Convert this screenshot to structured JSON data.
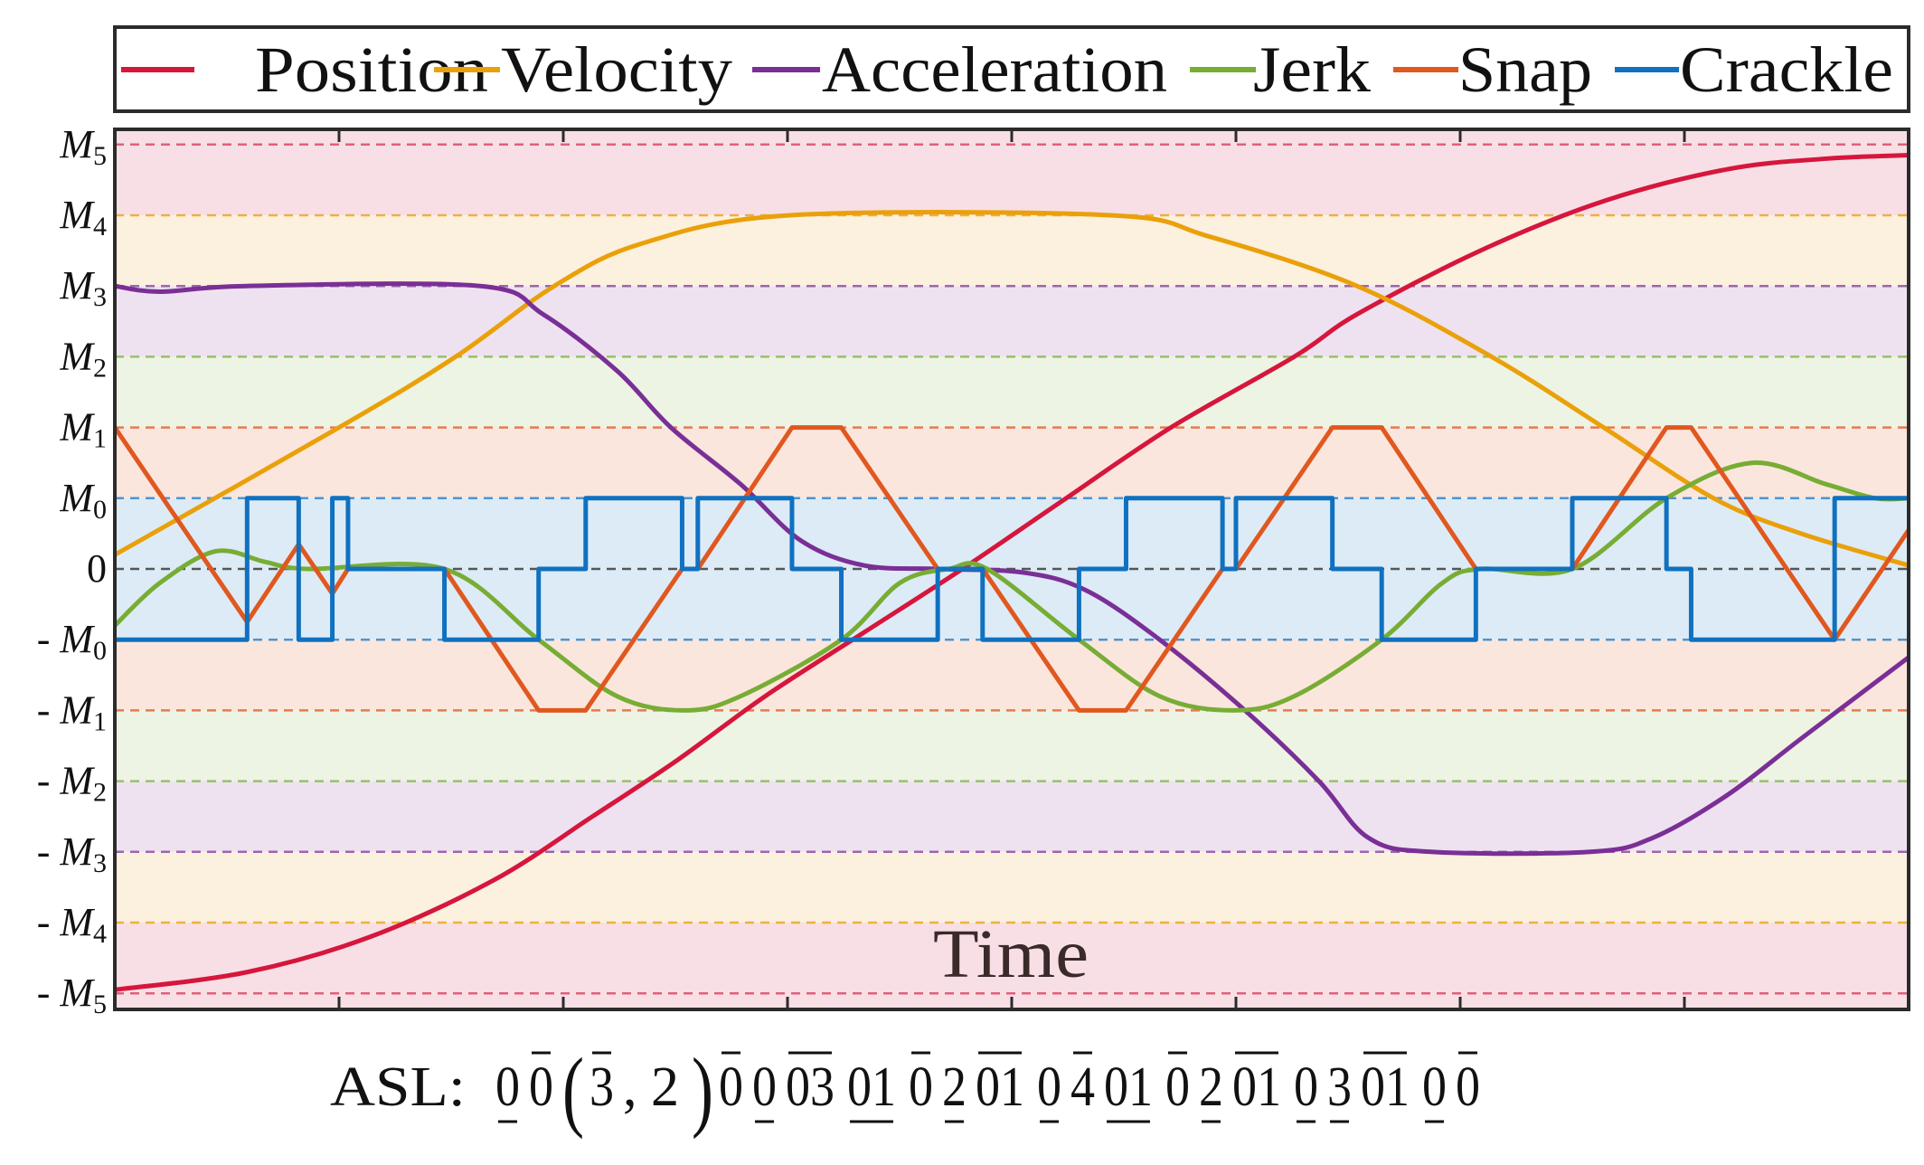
{
  "chart_data": {
    "type": "line",
    "xlabel": "Time",
    "xlim": [
      0,
      8
    ],
    "ylim": [
      -6.2,
      6.2
    ],
    "xticks": [
      1,
      2,
      3,
      4,
      5,
      6,
      7
    ],
    "grid": "dashed horizontal lines at each level",
    "legend_placement": "top (outside, horizontal)",
    "yticks": [
      {
        "value": 6,
        "prefix": "",
        "base": "M",
        "sub": "5"
      },
      {
        "value": 5,
        "prefix": "",
        "base": "M",
        "sub": "4"
      },
      {
        "value": 4,
        "prefix": "",
        "base": "M",
        "sub": "3"
      },
      {
        "value": 3,
        "prefix": "",
        "base": "M",
        "sub": "2"
      },
      {
        "value": 2,
        "prefix": "",
        "base": "M",
        "sub": "1"
      },
      {
        "value": 1,
        "prefix": "",
        "base": "M",
        "sub": "0"
      },
      {
        "value": 0,
        "prefix": "",
        "base": "0",
        "sub": ""
      },
      {
        "value": -1,
        "prefix": "- ",
        "base": "M",
        "sub": "0"
      },
      {
        "value": -2,
        "prefix": "- ",
        "base": "M",
        "sub": "1"
      },
      {
        "value": -3,
        "prefix": "- ",
        "base": "M",
        "sub": "2"
      },
      {
        "value": -4,
        "prefix": "- ",
        "base": "M",
        "sub": "3"
      },
      {
        "value": -5,
        "prefix": "- ",
        "base": "M",
        "sub": "4"
      },
      {
        "value": -6,
        "prefix": "- ",
        "base": "M",
        "sub": "5"
      }
    ],
    "level_colors": {
      "6": {
        "line": "#e0607a",
        "band": "#f8dfe5"
      },
      "5": {
        "line": "#eeb040",
        "band": "#fcf0de"
      },
      "4": {
        "line": "#9b67ad",
        "band": "#eee2f0"
      },
      "3": {
        "line": "#97c167",
        "band": "#eef4e4"
      },
      "2": {
        "line": "#e57a4f",
        "band": "#fbe6dd"
      },
      "1": {
        "line": "#4f95cf",
        "band": "#ddebf6"
      },
      "0": {
        "line": "#555555"
      }
    },
    "series": [
      {
        "name": "Position",
        "color": "#d6163c",
        "style": "smooth",
        "points": [
          [
            0,
            -5.95
          ],
          [
            0.59,
            -5.7
          ],
          [
            1.14,
            -5.2
          ],
          [
            1.69,
            -4.4
          ],
          [
            2.13,
            -3.5
          ],
          [
            2.51,
            -2.7
          ],
          [
            2.9,
            -1.8
          ],
          [
            3.34,
            -0.9
          ],
          [
            3.78,
            0
          ],
          [
            4.22,
            0.95
          ],
          [
            4.71,
            2
          ],
          [
            5.26,
            3
          ],
          [
            5.54,
            3.6
          ],
          [
            6.09,
            4.5
          ],
          [
            6.64,
            5.2
          ],
          [
            7.19,
            5.65
          ],
          [
            7.63,
            5.8
          ],
          [
            8,
            5.85
          ]
        ]
      },
      {
        "name": "Velocity",
        "color": "#eaa00a",
        "style": "smooth",
        "points": [
          [
            0,
            0.2
          ],
          [
            1.0,
            2
          ],
          [
            1.52,
            3
          ],
          [
            1.96,
            4
          ],
          [
            2.35,
            4.6
          ],
          [
            3.01,
            5
          ],
          [
            4.44,
            5
          ],
          [
            4.88,
            4.7
          ],
          [
            5.54,
            4
          ],
          [
            6.14,
            3
          ],
          [
            6.64,
            2
          ],
          [
            7.13,
            1
          ],
          [
            7.52,
            0.5
          ],
          [
            8,
            0.05
          ]
        ]
      },
      {
        "name": "Acceleration",
        "color": "#7a2f96",
        "style": "smooth",
        "points": [
          [
            0,
            4
          ],
          [
            0.2,
            3.92
          ],
          [
            0.59,
            4
          ],
          [
            1.63,
            4
          ],
          [
            1.91,
            3.6
          ],
          [
            2.24,
            2.8
          ],
          [
            2.48,
            2
          ],
          [
            2.79,
            1.2
          ],
          [
            3.06,
            0.4
          ],
          [
            3.34,
            0.05
          ],
          [
            3.67,
            0
          ],
          [
            4.05,
            -0.05
          ],
          [
            4.33,
            -0.3
          ],
          [
            4.66,
            -1
          ],
          [
            5.04,
            -2
          ],
          [
            5.37,
            -3
          ],
          [
            5.59,
            -3.8
          ],
          [
            5.87,
            -4
          ],
          [
            6.58,
            -4
          ],
          [
            6.86,
            -3.8
          ],
          [
            7.19,
            -3.2
          ],
          [
            7.52,
            -2.4
          ],
          [
            8,
            -1.25
          ]
        ]
      },
      {
        "name": "Jerk",
        "color": "#77ad34",
        "style": "smooth",
        "points": [
          [
            0,
            -0.8
          ],
          [
            0.2,
            -0.2
          ],
          [
            0.45,
            0.25
          ],
          [
            0.67,
            0.1
          ],
          [
            0.86,
            0
          ],
          [
            1.47,
            0
          ],
          [
            1.89,
            -1
          ],
          [
            2.24,
            -1.8
          ],
          [
            2.54,
            -2
          ],
          [
            2.79,
            -1.8
          ],
          [
            3.24,
            -1
          ],
          [
            3.5,
            -0.2
          ],
          [
            3.72,
            0
          ],
          [
            3.89,
            0
          ],
          [
            4.3,
            -1
          ],
          [
            4.66,
            -1.8
          ],
          [
            4.99,
            -2
          ],
          [
            5.26,
            -1.8
          ],
          [
            5.65,
            -1
          ],
          [
            5.92,
            -0.2
          ],
          [
            6.09,
            0
          ],
          [
            6.5,
            0
          ],
          [
            6.92,
            1
          ],
          [
            7.3,
            1.5
          ],
          [
            7.63,
            1.2
          ],
          [
            7.85,
            1
          ],
          [
            8,
            1
          ]
        ]
      },
      {
        "name": "Snap",
        "color": "#e0581f",
        "style": "linear",
        "points": [
          [
            0,
            2
          ],
          [
            0.59,
            -0.75
          ],
          [
            0.82,
            0.35
          ],
          [
            0.97,
            -0.35
          ],
          [
            1.04,
            0
          ],
          [
            1.47,
            0
          ],
          [
            1.89,
            -2
          ],
          [
            2.1,
            -2
          ],
          [
            2.53,
            0
          ],
          [
            2.6,
            0
          ],
          [
            3.02,
            2
          ],
          [
            3.24,
            2
          ],
          [
            3.67,
            0
          ],
          [
            3.87,
            0
          ],
          [
            4.3,
            -2
          ],
          [
            4.51,
            -2
          ],
          [
            4.94,
            0
          ],
          [
            5.0,
            0
          ],
          [
            5.43,
            2
          ],
          [
            5.65,
            2
          ],
          [
            6.07,
            0
          ],
          [
            6.5,
            0
          ],
          [
            6.92,
            2
          ],
          [
            7.03,
            2
          ],
          [
            7.67,
            -1
          ],
          [
            8,
            0.55
          ]
        ]
      },
      {
        "name": "Crackle",
        "color": "#1071c0",
        "style": "step",
        "points": [
          [
            0,
            -1
          ],
          [
            0.59,
            1
          ],
          [
            0.82,
            -1
          ],
          [
            0.97,
            1
          ],
          [
            1.04,
            0
          ],
          [
            1.47,
            -1
          ],
          [
            1.89,
            0
          ],
          [
            2.1,
            1
          ],
          [
            2.53,
            0
          ],
          [
            2.6,
            1
          ],
          [
            3.02,
            0
          ],
          [
            3.24,
            -1
          ],
          [
            3.67,
            0
          ],
          [
            3.87,
            -1
          ],
          [
            4.3,
            0
          ],
          [
            4.51,
            1
          ],
          [
            4.94,
            0
          ],
          [
            5.0,
            1
          ],
          [
            5.43,
            0
          ],
          [
            5.65,
            -1
          ],
          [
            6.07,
            0
          ],
          [
            6.5,
            1
          ],
          [
            6.92,
            0
          ],
          [
            7.03,
            -1
          ],
          [
            7.67,
            1
          ],
          [
            8,
            1
          ]
        ]
      }
    ],
    "annotation": {
      "prefix": "ASL:",
      "tokens": [
        {
          "t": "0",
          "m": "u"
        },
        {
          "t": "0",
          "m": "o"
        },
        {
          "t": "(",
          "m": "paren"
        },
        {
          "t": "3",
          "m": "o"
        },
        {
          "t": ", 2",
          "m": ""
        },
        {
          "t": ")",
          "m": "paren"
        },
        {
          "t": "0",
          "m": "o"
        },
        {
          "t": "0",
          "m": "u"
        },
        {
          "t": "03",
          "m": "o"
        },
        {
          "t": "01",
          "m": "u"
        },
        {
          "t": "0",
          "m": "o"
        },
        {
          "t": "2",
          "m": "u"
        },
        {
          "t": "01",
          "m": "o"
        },
        {
          "t": "0",
          "m": "u"
        },
        {
          "t": "4",
          "m": "o"
        },
        {
          "t": "01",
          "m": "u"
        },
        {
          "t": "0",
          "m": "o"
        },
        {
          "t": "2",
          "m": "u"
        },
        {
          "t": "01",
          "m": "o"
        },
        {
          "t": "0",
          "m": "u"
        },
        {
          "t": "3",
          "m": "u"
        },
        {
          "t": "01",
          "m": "o"
        },
        {
          "t": "0",
          "m": "u"
        },
        {
          "t": "0",
          "m": "o"
        }
      ]
    }
  }
}
